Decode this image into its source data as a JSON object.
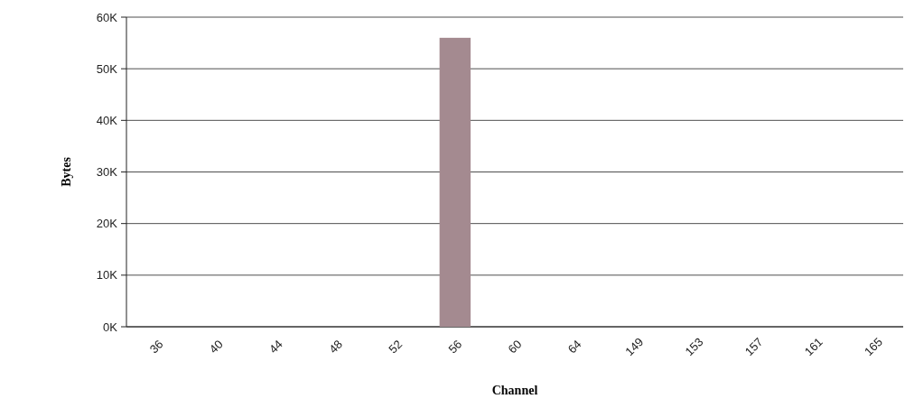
{
  "chart_data": {
    "type": "bar",
    "xlabel": "Channel",
    "ylabel": "Bytes",
    "categories": [
      "36",
      "40",
      "44",
      "48",
      "52",
      "56",
      "60",
      "64",
      "149",
      "153",
      "157",
      "161",
      "165"
    ],
    "values": [
      0,
      0,
      0,
      0,
      0,
      56000,
      0,
      0,
      0,
      0,
      0,
      0,
      0
    ],
    "colors": [
      "#5a5a6e",
      "#9a5a4e",
      "#5e6e52",
      "#a8704a",
      "#a08a30",
      "#a48a90",
      "#6e6a72",
      "#a26a60",
      "#7e7e6a",
      "#a8806a",
      "#a8966a",
      "#8e7a7e",
      "#4a4a56"
    ],
    "ylim": [
      0,
      60000
    ],
    "yticks": [
      {
        "value": 0,
        "label": "0K"
      },
      {
        "value": 10000,
        "label": "10K"
      },
      {
        "value": 20000,
        "label": "20K"
      },
      {
        "value": 30000,
        "label": "30K"
      },
      {
        "value": 40000,
        "label": "40K"
      },
      {
        "value": 50000,
        "label": "50K"
      },
      {
        "value": 60000,
        "label": "60K"
      }
    ],
    "grid": "y"
  }
}
